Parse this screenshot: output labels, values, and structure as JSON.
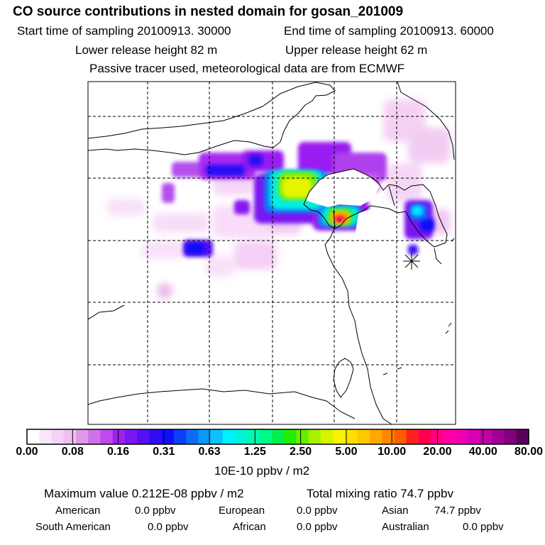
{
  "header": {
    "title": "CO  source contributions in nested domain for gosan_201009",
    "start_label": "Start time of sampling 20100913. 30000",
    "end_label": "End time of sampling 20100913. 60000",
    "lower_label": "Lower release height   82 m",
    "upper_label": "Upper release height   62 m",
    "tracer_label": "Passive tracer used, meteorological data are from ECMWF"
  },
  "colorbar": {
    "ticks": [
      "0.00",
      "0.08",
      "0.16",
      "0.31",
      "0.63",
      "1.25",
      "2.50",
      "5.00",
      "10.00",
      "20.00",
      "40.00",
      "80.00"
    ],
    "units": "10E-10 ppbv / m2",
    "colors": [
      "#ffffff",
      "#fbe6fb",
      "#f7d2f7",
      "#f0bff0",
      "#e098e8",
      "#d070ea",
      "#bf48ef",
      "#a020f0",
      "#7a18f0",
      "#5410f2",
      "#2e0cf4",
      "#1010f8",
      "#0c40f8",
      "#0c6cf8",
      "#0c98f8",
      "#08c4fa",
      "#00f0ff",
      "#00f4d8",
      "#00f8b0",
      "#00fa86",
      "#00f050",
      "#22ee00",
      "#66ee00",
      "#a6f000",
      "#d6f400",
      "#f8f400",
      "#ffe000",
      "#ffc800",
      "#ffa800",
      "#ff8800",
      "#ff5c00",
      "#ff2020",
      "#ff0050",
      "#ff0080",
      "#ff00a8",
      "#f000b4",
      "#d800b4",
      "#c000a8",
      "#a00098",
      "#800080",
      "#5a005a"
    ]
  },
  "footer": {
    "max_label": "Maximum value  0.212E-08 ppbv / m2",
    "total_label": "Total mixing ratio       74.7 ppbv",
    "sources": [
      {
        "name": "American",
        "value": "0.0 ppbv"
      },
      {
        "name": "European",
        "value": "0.0 ppbv"
      },
      {
        "name": "Asian",
        "value": "74.7 ppbv"
      },
      {
        "name": "South American",
        "value": "0.0 ppbv"
      },
      {
        "name": "African",
        "value": "0.0 ppbv"
      },
      {
        "name": "Australian",
        "value": "0.0 ppbv"
      }
    ]
  },
  "chart_data": {
    "type": "heatmap",
    "title": "CO  source contributions in nested domain for gosan_201009",
    "colorbar_ticks": [
      0.0,
      0.08,
      0.16,
      0.31,
      0.63,
      1.25,
      2.5,
      5.0,
      10.0,
      20.0,
      40.0,
      80.0
    ],
    "colorbar_units": "10E-10 ppbv / m2",
    "grid": true,
    "receptor_marker": "star",
    "max_value": "0.212E-08 ppbv / m2",
    "total_mixing_ratio": "74.7 ppbv"
  }
}
